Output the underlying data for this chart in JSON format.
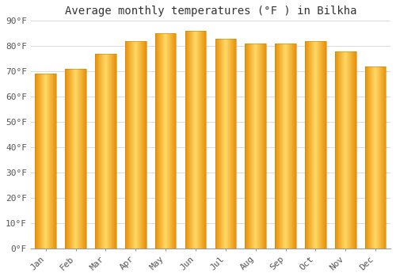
{
  "title": "Average monthly temperatures (°F ) in Bilkha",
  "months": [
    "Jan",
    "Feb",
    "Mar",
    "Apr",
    "May",
    "Jun",
    "Jul",
    "Aug",
    "Sep",
    "Oct",
    "Nov",
    "Dec"
  ],
  "values": [
    69,
    71,
    77,
    82,
    85,
    86,
    83,
    81,
    81,
    82,
    78,
    72
  ],
  "bar_color_center": "#FFD966",
  "bar_color_edge": "#E8900A",
  "ylim": [
    0,
    90
  ],
  "yticks": [
    0,
    10,
    20,
    30,
    40,
    50,
    60,
    70,
    80,
    90
  ],
  "ytick_labels": [
    "0°F",
    "10°F",
    "20°F",
    "30°F",
    "40°F",
    "50°F",
    "60°F",
    "70°F",
    "80°F",
    "90°F"
  ],
  "background_color": "#FFFFFF",
  "grid_color": "#DDDDDD",
  "title_fontsize": 10,
  "tick_fontsize": 8,
  "bar_width": 0.7
}
